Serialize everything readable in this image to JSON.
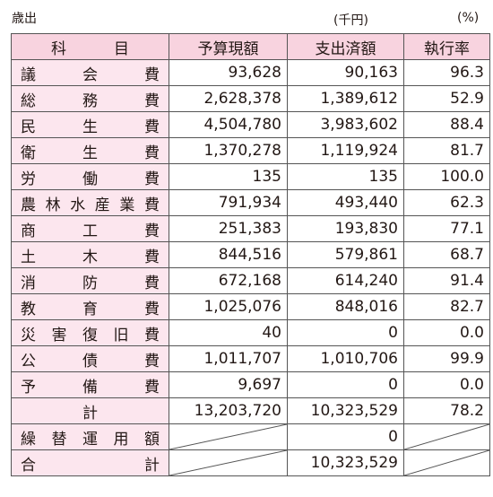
{
  "header": {
    "title": "歳出",
    "unit_amount": "(千円)",
    "unit_rate": "(%)"
  },
  "table": {
    "columns": [
      "科目",
      "予算現額",
      "支出済額",
      "執行率"
    ],
    "rows": [
      [
        "議会費",
        "93,628",
        "90,163",
        "96.3"
      ],
      [
        "総務費",
        "2,628,378",
        "1,389,612",
        "52.9"
      ],
      [
        "民生費",
        "4,504,780",
        "3,983,602",
        "88.4"
      ],
      [
        "衛生費",
        "1,370,278",
        "1,119,924",
        "81.7"
      ],
      [
        "労働費",
        "135",
        "135",
        "100.0"
      ],
      [
        "農林水産業費",
        "791,934",
        "493,440",
        "62.3"
      ],
      [
        "商工費",
        "251,383",
        "193,830",
        "77.1"
      ],
      [
        "土木費",
        "844,516",
        "579,861",
        "68.7"
      ],
      [
        "消防費",
        "672,168",
        "614,240",
        "91.4"
      ],
      [
        "教育費",
        "1,025,076",
        "848,016",
        "82.7"
      ],
      [
        "災害復旧費",
        "40",
        "0",
        "0.0"
      ],
      [
        "公債費",
        "1,011,707",
        "1,010,706",
        "99.9"
      ],
      [
        "予備費",
        "9,697",
        "0",
        "0.0"
      ],
      [
        "計",
        "13,203,720",
        "10,323,529",
        "78.2"
      ],
      [
        "繰替運用額",
        null,
        "0",
        null
      ],
      [
        "合計",
        null,
        "10,323,529",
        null
      ]
    ]
  }
}
